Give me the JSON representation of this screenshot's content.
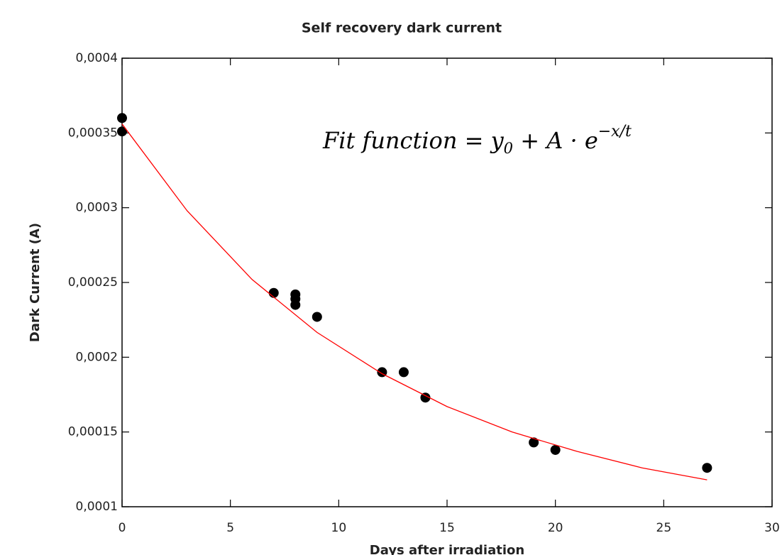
{
  "chart_data": {
    "type": "scatter",
    "title": "Self recovery dark current",
    "x_label": "Days after irradiation",
    "y_label": "Dark Current (A)",
    "annotation": [
      "Fit function = y",
      "0",
      " + A · e",
      "−x/t"
    ],
    "xlim": [
      0,
      30
    ],
    "xticks": [
      0,
      5,
      10,
      15,
      20,
      25,
      30
    ],
    "ylim": [
      0.0001,
      0.0004
    ],
    "yticks": [
      {
        "value": 0.0001,
        "label": "0,0001"
      },
      {
        "value": 0.00015,
        "label": "0,00015"
      },
      {
        "value": 0.0002,
        "label": "0,0002"
      },
      {
        "value": 0.00025,
        "label": "0,00025"
      },
      {
        "value": 0.0003,
        "label": "0,0003"
      },
      {
        "value": 0.00035,
        "label": "0,00035"
      },
      {
        "value": 0.0004,
        "label": "0,0004"
      }
    ],
    "series": [
      {
        "type": "scatter",
        "color": "#000000",
        "x": [
          0,
          0,
          7,
          8,
          8,
          8,
          9,
          12,
          13,
          14,
          19,
          20,
          27
        ],
        "values": [
          0.00036,
          0.000351,
          0.000243,
          0.000242,
          0.000239,
          0.000235,
          0.000227,
          0.00019,
          0.00019,
          0.000173,
          0.000143,
          0.000138,
          0.000126
        ]
      },
      {
        "type": "line",
        "color": "#ff0000",
        "x": [
          0,
          3,
          6,
          9,
          12,
          15,
          18,
          21,
          24,
          27
        ],
        "values": [
          0.000356,
          0.000298,
          0.000252,
          0.0002166,
          0.000189,
          0.000167,
          0.00015,
          0.000137,
          0.000126,
          0.000118
        ]
      }
    ]
  }
}
